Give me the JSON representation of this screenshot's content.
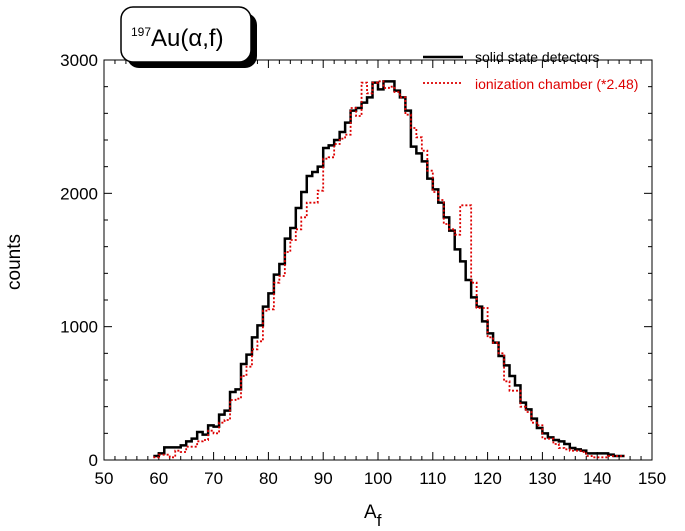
{
  "chart_data": {
    "type": "line",
    "title": {
      "mass_number": "197",
      "main": "Au(α,f)"
    },
    "xlabel": {
      "main": "A",
      "sub": "f"
    },
    "ylabel": "counts",
    "xlim": [
      50,
      150
    ],
    "ylim": [
      0,
      3000
    ],
    "x_ticks": [
      "50",
      "60",
      "70",
      "80",
      "90",
      "100",
      "110",
      "120",
      "130",
      "140",
      "150"
    ],
    "y_ticks": [
      "0",
      "1000",
      "2000",
      "3000"
    ],
    "legend_position": "top-right",
    "grid": false,
    "series": [
      {
        "name": "solid state detectors",
        "color": "#000000",
        "style": "solid",
        "x": [
          59,
          60,
          61,
          62,
          63,
          64,
          65,
          66,
          67,
          68,
          69,
          70,
          71,
          72,
          73,
          74,
          75,
          76,
          77,
          78,
          79,
          80,
          81,
          82,
          83,
          84,
          85,
          86,
          87,
          88,
          89,
          90,
          91,
          92,
          93,
          94,
          95,
          96,
          97,
          98,
          99,
          100,
          101,
          102,
          103,
          104,
          105,
          106,
          107,
          108,
          109,
          110,
          111,
          112,
          113,
          114,
          115,
          116,
          117,
          118,
          119,
          120,
          121,
          122,
          123,
          124,
          125,
          126,
          127,
          128,
          129,
          130,
          131,
          132,
          133,
          134,
          135,
          136,
          137,
          138,
          139,
          140,
          141,
          142,
          143,
          144
        ],
        "y": [
          30,
          50,
          95,
          95,
          95,
          110,
          140,
          160,
          210,
          190,
          260,
          250,
          340,
          370,
          510,
          530,
          720,
          790,
          920,
          1010,
          1150,
          1250,
          1390,
          1470,
          1660,
          1740,
          1890,
          2010,
          2130,
          2160,
          2200,
          2340,
          2360,
          2400,
          2460,
          2530,
          2620,
          2640,
          2680,
          2720,
          2830,
          2780,
          2840,
          2840,
          2770,
          2720,
          2620,
          2350,
          2300,
          2240,
          2110,
          2030,
          1930,
          1820,
          1720,
          1580,
          1490,
          1350,
          1220,
          1150,
          1040,
          950,
          880,
          780,
          710,
          630,
          560,
          430,
          380,
          310,
          240,
          200,
          170,
          150,
          140,
          120,
          90,
          80,
          70,
          50,
          50,
          50,
          50,
          40,
          30,
          30
        ]
      },
      {
        "name": "ionization chamber (*2.48)",
        "color": "#dd0000",
        "style": "dotted",
        "x": [
          59,
          60,
          61,
          62,
          63,
          64,
          65,
          66,
          67,
          68,
          69,
          70,
          71,
          72,
          73,
          74,
          75,
          76,
          77,
          78,
          79,
          80,
          81,
          82,
          83,
          84,
          85,
          86,
          87,
          88,
          89,
          90,
          91,
          92,
          93,
          94,
          95,
          96,
          97,
          98,
          99,
          100,
          101,
          102,
          103,
          104,
          105,
          106,
          107,
          108,
          109,
          110,
          111,
          112,
          113,
          114,
          115,
          116,
          117,
          118,
          119,
          120,
          121,
          122,
          123,
          124,
          125,
          126,
          127,
          128,
          129,
          130,
          131,
          132,
          133,
          134,
          135,
          136,
          137,
          138,
          139,
          140,
          141,
          142,
          143,
          144
        ],
        "y": [
          20,
          40,
          40,
          20,
          70,
          60,
          100,
          100,
          140,
          150,
          220,
          200,
          280,
          300,
          450,
          460,
          630,
          700,
          830,
          890,
          1120,
          1130,
          1330,
          1380,
          1560,
          1650,
          1730,
          1820,
          1930,
          1930,
          2020,
          2260,
          2270,
          2370,
          2410,
          2440,
          2640,
          2580,
          2830,
          2750,
          2830,
          2840,
          2790,
          2800,
          2760,
          2720,
          2590,
          2490,
          2420,
          2320,
          2170,
          2010,
          1950,
          1770,
          1730,
          1690,
          1910,
          1910,
          1330,
          1140,
          1140,
          920,
          880,
          800,
          590,
          520,
          520,
          400,
          360,
          280,
          260,
          160,
          160,
          120,
          90,
          80,
          70,
          70,
          60,
          30,
          20,
          20,
          20,
          30,
          30,
          30
        ]
      }
    ]
  }
}
